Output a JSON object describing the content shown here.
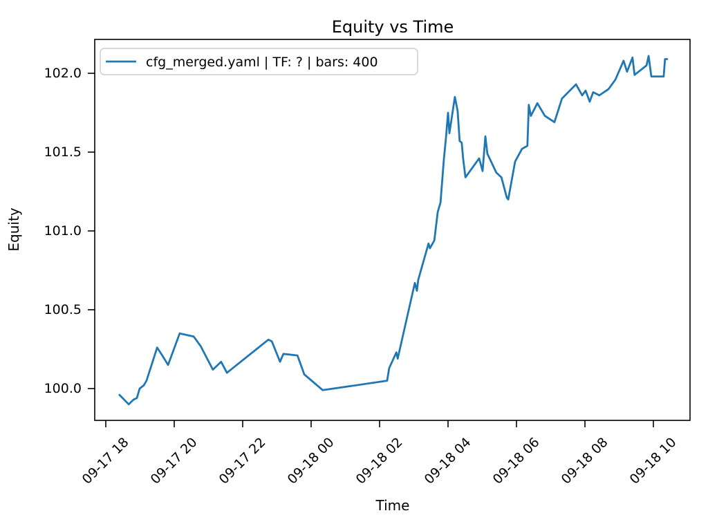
{
  "chart_data": {
    "type": "line",
    "title": "Equity vs Time",
    "xlabel": "Time",
    "ylabel": "Equity",
    "legend_label": "cfg_merged.yaml | TF: ? | bars: 400",
    "legend_position": "upper-left",
    "line_color": "#1f77b4",
    "grid": false,
    "axes": {
      "x_unit_note": "hours after 09-17 18:00",
      "xlim_hours": [
        -0.33,
        17.08
      ],
      "ylim": [
        99.78,
        102.21
      ],
      "x_tick_hours": [
        0,
        2,
        4,
        6,
        8,
        10,
        12,
        14,
        16
      ],
      "x_tick_labels": [
        "09-17 18",
        "09-17 20",
        "09-17 22",
        "09-18 00",
        "09-18 02",
        "09-18 04",
        "09-18 06",
        "09-18 08",
        "09-18 10"
      ],
      "y_ticks": [
        100.0,
        100.5,
        101.0,
        101.5,
        102.0
      ],
      "y_tick_labels": [
        "100.0",
        "100.5",
        "101.0",
        "101.5",
        "102.0"
      ]
    },
    "series": [
      {
        "name": "cfg_merged.yaml | TF: ? | bars: 400",
        "points_hours_value": [
          [
            0.4,
            99.96
          ],
          [
            0.67,
            99.9
          ],
          [
            0.81,
            99.93
          ],
          [
            0.91,
            99.94
          ],
          [
            0.99,
            100.0
          ],
          [
            1.11,
            100.02
          ],
          [
            1.19,
            100.05
          ],
          [
            1.5,
            100.26
          ],
          [
            1.65,
            100.21
          ],
          [
            1.82,
            100.15
          ],
          [
            2.16,
            100.35
          ],
          [
            2.57,
            100.33
          ],
          [
            2.77,
            100.27
          ],
          [
            3.13,
            100.12
          ],
          [
            3.37,
            100.17
          ],
          [
            3.54,
            100.1
          ],
          [
            4.75,
            100.31
          ],
          [
            4.85,
            100.3
          ],
          [
            5.09,
            100.17
          ],
          [
            5.19,
            100.22
          ],
          [
            5.6,
            100.21
          ],
          [
            5.8,
            100.09
          ],
          [
            6.34,
            99.99
          ],
          [
            8.22,
            100.05
          ],
          [
            8.28,
            100.13
          ],
          [
            8.49,
            100.23
          ],
          [
            8.53,
            100.19
          ],
          [
            9.03,
            100.67
          ],
          [
            9.09,
            100.62
          ],
          [
            9.13,
            100.69
          ],
          [
            9.43,
            100.92
          ],
          [
            9.47,
            100.89
          ],
          [
            9.6,
            100.94
          ],
          [
            9.7,
            101.12
          ],
          [
            9.78,
            101.18
          ],
          [
            9.88,
            101.46
          ],
          [
            9.94,
            101.59
          ],
          [
            10.0,
            101.75
          ],
          [
            10.04,
            101.62
          ],
          [
            10.2,
            101.85
          ],
          [
            10.28,
            101.76
          ],
          [
            10.34,
            101.57
          ],
          [
            10.4,
            101.56
          ],
          [
            10.44,
            101.46
          ],
          [
            10.51,
            101.34
          ],
          [
            10.91,
            101.46
          ],
          [
            11.01,
            101.38
          ],
          [
            11.09,
            101.6
          ],
          [
            11.15,
            101.49
          ],
          [
            11.41,
            101.37
          ],
          [
            11.56,
            101.34
          ],
          [
            11.72,
            101.21
          ],
          [
            11.76,
            101.2
          ],
          [
            11.96,
            101.44
          ],
          [
            12.16,
            101.52
          ],
          [
            12.32,
            101.54
          ],
          [
            12.36,
            101.8
          ],
          [
            12.42,
            101.73
          ],
          [
            12.61,
            101.81
          ],
          [
            12.83,
            101.73
          ],
          [
            13.11,
            101.69
          ],
          [
            13.33,
            101.84
          ],
          [
            13.74,
            101.93
          ],
          [
            13.92,
            101.86
          ],
          [
            14.02,
            101.89
          ],
          [
            14.14,
            101.82
          ],
          [
            14.24,
            101.88
          ],
          [
            14.42,
            101.86
          ],
          [
            14.69,
            101.9
          ],
          [
            14.89,
            101.96
          ],
          [
            15.13,
            102.08
          ],
          [
            15.23,
            102.01
          ],
          [
            15.39,
            102.1
          ],
          [
            15.45,
            101.99
          ],
          [
            15.8,
            102.05
          ],
          [
            15.86,
            102.11
          ],
          [
            15.94,
            101.98
          ],
          [
            16.3,
            101.98
          ],
          [
            16.34,
            102.09
          ],
          [
            16.4,
            102.09
          ]
        ]
      }
    ]
  }
}
